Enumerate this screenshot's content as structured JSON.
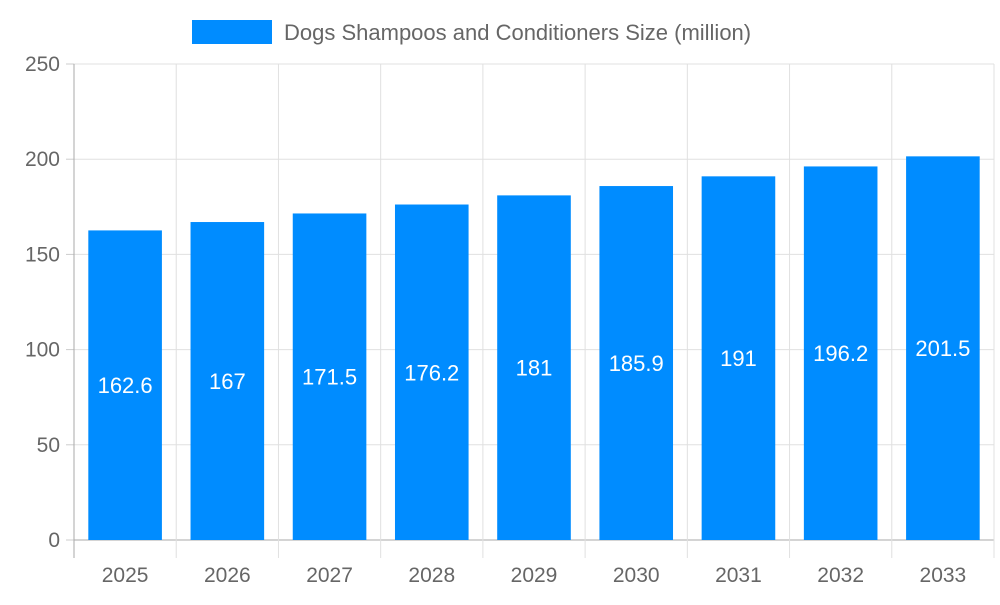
{
  "chart_data": {
    "type": "bar",
    "title": "",
    "xlabel": "",
    "ylabel": "",
    "categories": [
      "2025",
      "2026",
      "2027",
      "2028",
      "2029",
      "2030",
      "2031",
      "2032",
      "2033"
    ],
    "series": [
      {
        "name": "Dogs Shampoos and Conditioners Size (million)",
        "values": [
          162.6,
          167,
          171.5,
          176.2,
          181,
          185.9,
          191,
          196.2,
          201.5
        ],
        "color": "#008cff"
      }
    ],
    "ylim": [
      0,
      250
    ],
    "yticks": [
      0,
      50,
      100,
      150,
      200,
      250
    ],
    "grid": true,
    "legend_position": "top",
    "data_labels": true
  }
}
